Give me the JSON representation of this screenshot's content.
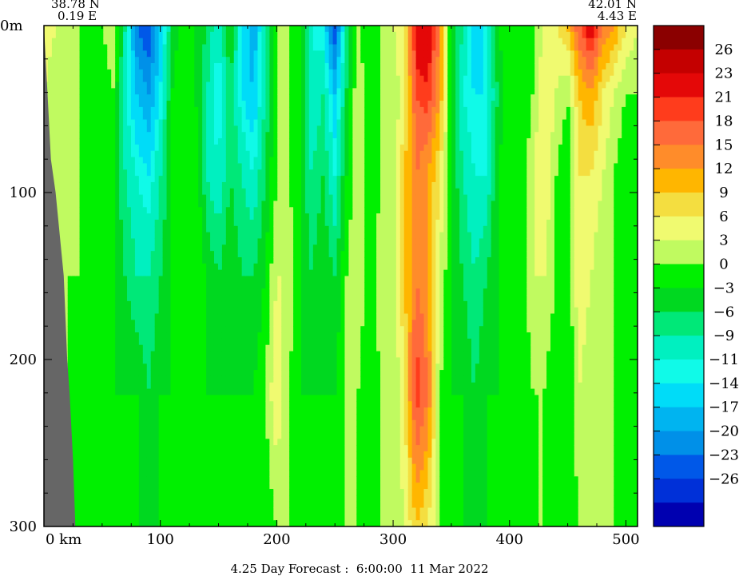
{
  "header": {
    "left_coord": {
      "lat": "38.78 N",
      "lon": "0.19 E"
    },
    "right_coord": {
      "lat": "42.01 N",
      "lon": "4.43 E"
    }
  },
  "footer": {
    "caption": "4.25 Day Forecast :  6:00:00  11 Mar 2022"
  },
  "chart_data": {
    "type": "heatmap",
    "title": "",
    "xlabel": "km",
    "ylabel": "m",
    "xlim": [
      0,
      510
    ],
    "ylim": [
      0,
      300
    ],
    "y_inverted": true,
    "x_ticks": [
      {
        "value": 0,
        "label": "0  km"
      },
      {
        "value": 100,
        "label": "100"
      },
      {
        "value": 200,
        "label": "200"
      },
      {
        "value": 300,
        "label": "300"
      },
      {
        "value": 400,
        "label": "400"
      },
      {
        "value": 500,
        "label": "500"
      }
    ],
    "y_ticks": [
      {
        "value": 0,
        "label": "0m"
      },
      {
        "value": 100,
        "label": "100"
      },
      {
        "value": 200,
        "label": "200"
      },
      {
        "value": 300,
        "label": "300"
      }
    ],
    "land_color": "#666666",
    "colorbar": {
      "labels": [
        "26",
        "23",
        "21",
        "18",
        "15",
        "12",
        "9",
        "6",
        "3",
        "0",
        "−3",
        "−6",
        "−9",
        "−11",
        "−14",
        "−17",
        "−20",
        "−23",
        "−26"
      ],
      "colors": [
        "#8b0000",
        "#c40000",
        "#e40808",
        "#ff3c1c",
        "#ff6a3a",
        "#ff8c2a",
        "#ffb600",
        "#f4de40",
        "#f0fa70",
        "#c0fa60",
        "#00f000",
        "#00d820",
        "#00e878",
        "#00f0c0",
        "#10fae8",
        "#00dcf8",
        "#00b4f0",
        "#0090e8",
        "#0058e8",
        "#0030d8",
        "#0000b0"
      ]
    },
    "columns": [
      {
        "x": 0,
        "v": [
          9,
          6,
          3,
          3,
          3,
          3
        ]
      },
      {
        "x": 10,
        "v": [
          6,
          3,
          3,
          3,
          3,
          3
        ]
      },
      {
        "x": 20,
        "v": [
          3,
          3,
          3,
          3,
          3,
          3
        ]
      },
      {
        "x": 30,
        "v": [
          3,
          3,
          3,
          3,
          0,
          3
        ]
      },
      {
        "x": 40,
        "v": [
          0,
          0,
          0,
          0,
          0,
          0
        ]
      },
      {
        "x": 50,
        "v": [
          3,
          0,
          0,
          0,
          0,
          0
        ]
      },
      {
        "x": 60,
        "v": [
          6,
          3,
          0,
          0,
          0,
          3
        ]
      },
      {
        "x": 70,
        "v": [
          -6,
          -9,
          -6,
          -3,
          0,
          0
        ]
      },
      {
        "x": 80,
        "v": [
          -20,
          -14,
          -9,
          -6,
          0,
          0
        ]
      },
      {
        "x": 90,
        "v": [
          -23,
          -17,
          -11,
          -6,
          -3,
          0
        ]
      },
      {
        "x": 100,
        "v": [
          -14,
          -11,
          -6,
          -3,
          0,
          0
        ]
      },
      {
        "x": 110,
        "v": [
          -3,
          0,
          0,
          0,
          0,
          3
        ]
      },
      {
        "x": 120,
        "v": [
          3,
          3,
          3,
          0,
          0,
          3
        ]
      },
      {
        "x": 130,
        "v": [
          0,
          0,
          3,
          3,
          0,
          3
        ]
      },
      {
        "x": 140,
        "v": [
          -3,
          -6,
          -6,
          0,
          0,
          0
        ]
      },
      {
        "x": 150,
        "v": [
          -9,
          -11,
          -9,
          -3,
          0,
          0
        ]
      },
      {
        "x": 160,
        "v": [
          0,
          -3,
          -3,
          0,
          0,
          0
        ]
      },
      {
        "x": 170,
        "v": [
          -11,
          -11,
          -6,
          -3,
          0,
          0
        ]
      },
      {
        "x": 180,
        "v": [
          -17,
          -14,
          -9,
          -3,
          0,
          0
        ]
      },
      {
        "x": 190,
        "v": [
          -6,
          -6,
          -3,
          0,
          3,
          0
        ]
      },
      {
        "x": 200,
        "v": [
          3,
          3,
          3,
          6,
          9,
          3
        ]
      },
      {
        "x": 210,
        "v": [
          3,
          3,
          3,
          6,
          3,
          3
        ]
      },
      {
        "x": 220,
        "v": [
          0,
          0,
          0,
          0,
          0,
          3
        ]
      },
      {
        "x": 230,
        "v": [
          -9,
          -9,
          -6,
          -3,
          0,
          0
        ]
      },
      {
        "x": 240,
        "v": [
          -11,
          -6,
          -3,
          0,
          0,
          0
        ]
      },
      {
        "x": 250,
        "v": [
          -23,
          -14,
          -9,
          -3,
          0,
          0
        ]
      },
      {
        "x": 260,
        "v": [
          -6,
          -3,
          0,
          3,
          3,
          3
        ]
      },
      {
        "x": 270,
        "v": [
          3,
          6,
          6,
          6,
          3,
          3
        ]
      },
      {
        "x": 280,
        "v": [
          0,
          0,
          0,
          0,
          0,
          0
        ]
      },
      {
        "x": 290,
        "v": [
          3,
          3,
          3,
          6,
          3,
          3
        ]
      },
      {
        "x": 300,
        "v": [
          6,
          3,
          3,
          3,
          3,
          3
        ]
      },
      {
        "x": 310,
        "v": [
          9,
          9,
          12,
          12,
          9,
          6
        ]
      },
      {
        "x": 320,
        "v": [
          26,
          21,
          18,
          18,
          23,
          12
        ]
      },
      {
        "x": 330,
        "v": [
          26,
          23,
          15,
          15,
          18,
          9
        ]
      },
      {
        "x": 340,
        "v": [
          18,
          15,
          9,
          6,
          3,
          3
        ]
      },
      {
        "x": 350,
        "v": [
          0,
          0,
          0,
          0,
          0,
          0
        ]
      },
      {
        "x": 360,
        "v": [
          -6,
          -9,
          -6,
          -3,
          0,
          0
        ]
      },
      {
        "x": 370,
        "v": [
          -14,
          -11,
          -9,
          -6,
          -3,
          0
        ]
      },
      {
        "x": 380,
        "v": [
          -9,
          -11,
          -9,
          -3,
          0,
          0
        ]
      },
      {
        "x": 390,
        "v": [
          0,
          -3,
          0,
          0,
          0,
          0
        ]
      },
      {
        "x": 400,
        "v": [
          3,
          3,
          3,
          0,
          0,
          3
        ]
      },
      {
        "x": 410,
        "v": [
          0,
          0,
          0,
          0,
          0,
          0
        ]
      },
      {
        "x": 420,
        "v": [
          3,
          3,
          6,
          6,
          3,
          3
        ]
      },
      {
        "x": 430,
        "v": [
          6,
          9,
          9,
          6,
          3,
          3
        ]
      },
      {
        "x": 440,
        "v": [
          9,
          6,
          3,
          3,
          0,
          3
        ]
      },
      {
        "x": 450,
        "v": [
          12,
          3,
          0,
          0,
          0,
          0
        ]
      },
      {
        "x": 460,
        "v": [
          21,
          12,
          9,
          9,
          6,
          3
        ]
      },
      {
        "x": 470,
        "v": [
          26,
          15,
          9,
          6,
          3,
          3
        ]
      },
      {
        "x": 480,
        "v": [
          18,
          9,
          6,
          3,
          3,
          3
        ]
      },
      {
        "x": 490,
        "v": [
          15,
          6,
          3,
          3,
          3,
          3
        ]
      },
      {
        "x": 500,
        "v": [
          9,
          3,
          0,
          0,
          0,
          3
        ]
      },
      {
        "x": 510,
        "v": [
          6,
          3,
          3,
          3,
          3,
          3
        ]
      }
    ],
    "column_depths": [
      0,
      40,
      90,
      150,
      220,
      300
    ],
    "land_boundary": [
      {
        "depth": 0,
        "x": 0
      },
      {
        "depth": 40,
        "x": 3
      },
      {
        "depth": 80,
        "x": 6
      },
      {
        "depth": 100,
        "x": 10
      },
      {
        "depth": 150,
        "x": 17
      },
      {
        "depth": 200,
        "x": 20
      },
      {
        "depth": 220,
        "x": 22
      },
      {
        "depth": 260,
        "x": 25
      },
      {
        "depth": 300,
        "x": 27
      }
    ]
  }
}
